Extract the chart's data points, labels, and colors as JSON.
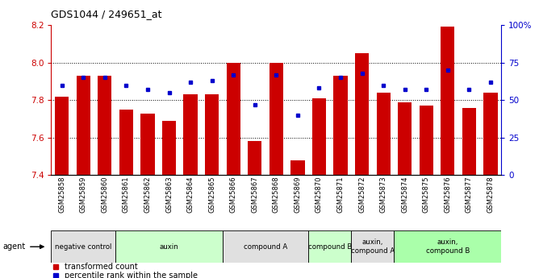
{
  "title": "GDS1044 / 249651_at",
  "samples": [
    "GSM25858",
    "GSM25859",
    "GSM25860",
    "GSM25861",
    "GSM25862",
    "GSM25863",
    "GSM25864",
    "GSM25865",
    "GSM25866",
    "GSM25867",
    "GSM25868",
    "GSM25869",
    "GSM25870",
    "GSM25871",
    "GSM25872",
    "GSM25873",
    "GSM25874",
    "GSM25875",
    "GSM25876",
    "GSM25877",
    "GSM25878"
  ],
  "bar_values": [
    7.82,
    7.93,
    7.93,
    7.75,
    7.73,
    7.69,
    7.83,
    7.83,
    8.0,
    7.58,
    8.0,
    7.48,
    7.81,
    7.93,
    8.05,
    7.84,
    7.79,
    7.77,
    8.19,
    7.76,
    7.84
  ],
  "dot_values": [
    60,
    65,
    65,
    60,
    57,
    55,
    62,
    63,
    67,
    47,
    67,
    40,
    58,
    65,
    68,
    60,
    57,
    57,
    70,
    57,
    62
  ],
  "ylim": [
    7.4,
    8.2
  ],
  "yticks": [
    7.4,
    7.6,
    7.8,
    8.0,
    8.2
  ],
  "right_yticks": [
    0,
    25,
    50,
    75,
    100
  ],
  "right_ylim": [
    0,
    100
  ],
  "bar_color": "#cc0000",
  "dot_color": "#0000cc",
  "left_tick_color": "#cc0000",
  "right_tick_color": "#0000cc",
  "agent_groups": [
    {
      "label": "negative control",
      "start": 0,
      "end": 3,
      "color": "#e0e0e0"
    },
    {
      "label": "auxin",
      "start": 3,
      "end": 8,
      "color": "#ccffcc"
    },
    {
      "label": "compound A",
      "start": 8,
      "end": 12,
      "color": "#e0e0e0"
    },
    {
      "label": "compound B",
      "start": 12,
      "end": 14,
      "color": "#ccffcc"
    },
    {
      "label": "auxin,\ncompound A",
      "start": 14,
      "end": 16,
      "color": "#e0e0e0"
    },
    {
      "label": "auxin,\ncompound B",
      "start": 16,
      "end": 21,
      "color": "#aaffaa"
    }
  ],
  "legend_items": [
    {
      "label": "transformed count",
      "color": "#cc0000"
    },
    {
      "label": "percentile rank within the sample",
      "color": "#0000cc"
    }
  ]
}
